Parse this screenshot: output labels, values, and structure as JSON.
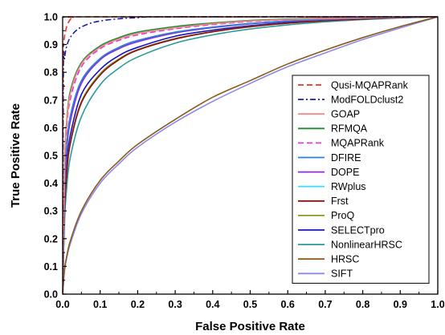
{
  "chart_data": {
    "type": "line",
    "title": "",
    "xlabel": "False Positive Rate",
    "ylabel": "True Positive Rate",
    "xlim": [
      0.0,
      1.0
    ],
    "ylim": [
      0.0,
      1.0
    ],
    "x_ticks": [
      "0.0",
      "0.1",
      "0.2",
      "0.3",
      "0.4",
      "0.5",
      "0.6",
      "0.7",
      "0.8",
      "0.9",
      "1.0"
    ],
    "y_ticks": [
      "0.0",
      "0.1",
      "0.2",
      "0.3",
      "0.4",
      "0.5",
      "0.6",
      "0.7",
      "0.8",
      "0.9",
      "1.0"
    ],
    "grid": false,
    "legend_position": "bottom-right",
    "series": [
      {
        "name": "Qusi-MQAPRank",
        "color": "#e8312a",
        "dash": "dash",
        "x": [
          0,
          0.001,
          0.003,
          0.005,
          0.008,
          0.012,
          0.02,
          0.03,
          0.05,
          1.0
        ],
        "y": [
          0,
          0.8,
          0.9,
          0.93,
          0.95,
          0.97,
          0.99,
          0.998,
          1.0,
          1.0
        ]
      },
      {
        "name": "ModFOLDclust2",
        "color": "#1c1ca8",
        "dash": "dashdot",
        "x": [
          0,
          0.002,
          0.005,
          0.01,
          0.02,
          0.04,
          0.07,
          0.1,
          0.15,
          0.2,
          0.3,
          1.0
        ],
        "y": [
          0,
          0.8,
          0.85,
          0.89,
          0.925,
          0.955,
          0.975,
          0.985,
          0.993,
          0.997,
          1.0,
          1.0
        ]
      },
      {
        "name": "GOAP",
        "color": "#f08a8a",
        "dash": "solid",
        "x": [
          0,
          0.005,
          0.01,
          0.02,
          0.05,
          0.1,
          0.15,
          0.2,
          0.3,
          0.4,
          0.5,
          0.6,
          0.7,
          0.8,
          0.9,
          1.0
        ],
        "y": [
          0,
          0.45,
          0.6,
          0.72,
          0.83,
          0.89,
          0.92,
          0.94,
          0.96,
          0.975,
          0.985,
          0.99,
          0.994,
          0.997,
          0.999,
          1.0
        ]
      },
      {
        "name": "RFMQA",
        "color": "#1e8c2e",
        "dash": "solid",
        "x": [
          0,
          0.005,
          0.01,
          0.02,
          0.05,
          0.1,
          0.15,
          0.2,
          0.3,
          0.4,
          0.5,
          0.6,
          0.7,
          0.8,
          0.9,
          1.0
        ],
        "y": [
          0,
          0.46,
          0.61,
          0.73,
          0.835,
          0.895,
          0.925,
          0.945,
          0.965,
          0.978,
          0.987,
          0.992,
          0.995,
          0.997,
          0.999,
          1.0
        ]
      },
      {
        "name": "MQAPRank",
        "color": "#e23bd4",
        "dash": "dash",
        "x": [
          0,
          0.005,
          0.01,
          0.02,
          0.05,
          0.1,
          0.15,
          0.2,
          0.3,
          0.4,
          0.5,
          0.6,
          0.7,
          0.8,
          0.9,
          1.0
        ],
        "y": [
          0,
          0.43,
          0.58,
          0.7,
          0.82,
          0.885,
          0.915,
          0.935,
          0.957,
          0.972,
          0.983,
          0.99,
          0.994,
          0.997,
          0.999,
          1.0
        ]
      },
      {
        "name": "DFIRE",
        "color": "#2e7fd6",
        "dash": "solid",
        "x": [
          0,
          0.005,
          0.01,
          0.02,
          0.05,
          0.1,
          0.15,
          0.2,
          0.3,
          0.4,
          0.5,
          0.6,
          0.7,
          0.8,
          0.9,
          1.0
        ],
        "y": [
          0,
          0.38,
          0.52,
          0.64,
          0.77,
          0.85,
          0.89,
          0.915,
          0.945,
          0.963,
          0.976,
          0.985,
          0.991,
          0.995,
          0.998,
          1.0
        ]
      },
      {
        "name": "DOPE",
        "color": "#8a2be2",
        "dash": "solid",
        "x": [
          0,
          0.005,
          0.01,
          0.02,
          0.05,
          0.1,
          0.15,
          0.2,
          0.3,
          0.4,
          0.5,
          0.6,
          0.7,
          0.8,
          0.9,
          1.0
        ],
        "y": [
          0,
          0.36,
          0.5,
          0.62,
          0.76,
          0.845,
          0.885,
          0.91,
          0.942,
          0.961,
          0.975,
          0.984,
          0.99,
          0.995,
          0.998,
          1.0
        ]
      },
      {
        "name": "RWplus",
        "color": "#3fe0f0",
        "dash": "solid",
        "x": [
          0,
          0.005,
          0.01,
          0.02,
          0.05,
          0.1,
          0.15,
          0.2,
          0.3,
          0.4,
          0.5,
          0.6,
          0.7,
          0.8,
          0.9,
          1.0
        ],
        "y": [
          0,
          0.37,
          0.51,
          0.63,
          0.765,
          0.848,
          0.887,
          0.912,
          0.943,
          0.962,
          0.975,
          0.985,
          0.99,
          0.995,
          0.998,
          1.0
        ]
      },
      {
        "name": "Frst",
        "color": "#8b1010",
        "dash": "solid",
        "x": [
          0,
          0.005,
          0.01,
          0.02,
          0.05,
          0.1,
          0.15,
          0.2,
          0.3,
          0.4,
          0.5,
          0.6,
          0.7,
          0.8,
          0.9,
          1.0
        ],
        "y": [
          0,
          0.3,
          0.42,
          0.54,
          0.69,
          0.79,
          0.845,
          0.88,
          0.92,
          0.946,
          0.964,
          0.977,
          0.986,
          0.992,
          0.997,
          1.0
        ]
      },
      {
        "name": "ProQ",
        "color": "#8c9a1a",
        "dash": "solid",
        "x": [
          0,
          0.005,
          0.01,
          0.02,
          0.05,
          0.1,
          0.15,
          0.2,
          0.3,
          0.4,
          0.5,
          0.6,
          0.7,
          0.8,
          0.9,
          1.0
        ],
        "y": [
          0,
          0.3,
          0.42,
          0.545,
          0.695,
          0.795,
          0.848,
          0.882,
          0.922,
          0.947,
          0.965,
          0.977,
          0.986,
          0.992,
          0.997,
          1.0
        ]
      },
      {
        "name": "SELECTpro",
        "color": "#1414c8",
        "dash": "solid",
        "x": [
          0,
          0.005,
          0.01,
          0.02,
          0.05,
          0.1,
          0.15,
          0.2,
          0.3,
          0.4,
          0.5,
          0.6,
          0.7,
          0.8,
          0.9,
          1.0
        ],
        "y": [
          0,
          0.32,
          0.45,
          0.57,
          0.72,
          0.81,
          0.86,
          0.89,
          0.93,
          0.952,
          0.968,
          0.98,
          0.988,
          0.993,
          0.997,
          1.0
        ]
      },
      {
        "name": "NonlinearHRSC",
        "color": "#2a9a9a",
        "dash": "solid",
        "x": [
          0,
          0.005,
          0.01,
          0.02,
          0.05,
          0.1,
          0.15,
          0.2,
          0.3,
          0.4,
          0.5,
          0.6,
          0.7,
          0.8,
          0.9,
          1.0
        ],
        "y": [
          0,
          0.26,
          0.37,
          0.49,
          0.64,
          0.755,
          0.815,
          0.855,
          0.905,
          0.935,
          0.956,
          0.971,
          0.982,
          0.99,
          0.996,
          1.0
        ]
      },
      {
        "name": "HRSC",
        "color": "#8b5a1a",
        "dash": "solid",
        "x": [
          0,
          0.005,
          0.01,
          0.02,
          0.05,
          0.1,
          0.15,
          0.2,
          0.3,
          0.4,
          0.5,
          0.6,
          0.7,
          0.8,
          0.9,
          1.0
        ],
        "y": [
          0,
          0.09,
          0.13,
          0.19,
          0.3,
          0.41,
          0.48,
          0.54,
          0.63,
          0.71,
          0.77,
          0.83,
          0.88,
          0.925,
          0.965,
          1.0
        ]
      },
      {
        "name": "SIFT",
        "color": "#8a8ae8",
        "dash": "solid",
        "x": [
          0,
          0.005,
          0.01,
          0.02,
          0.05,
          0.1,
          0.15,
          0.2,
          0.3,
          0.4,
          0.5,
          0.6,
          0.7,
          0.8,
          0.9,
          1.0
        ],
        "y": [
          0,
          0.085,
          0.125,
          0.18,
          0.29,
          0.4,
          0.47,
          0.53,
          0.62,
          0.695,
          0.76,
          0.82,
          0.87,
          0.918,
          0.96,
          1.0
        ]
      }
    ]
  }
}
